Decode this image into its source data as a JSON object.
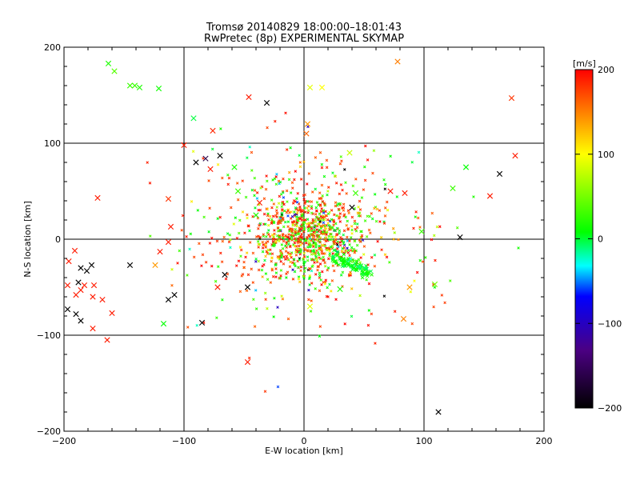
{
  "chart_data": {
    "type": "scatter",
    "title": "Tromsø 20140829 18:00:00–18:01:43",
    "subtitle": "RwPretec (8p) EXPERIMENTAL SKYMAP",
    "xlabel": "E-W location [km]",
    "ylabel": "N-S location [km]",
    "xlim": [
      -200,
      200
    ],
    "ylim": [
      -200,
      200
    ],
    "xticks": [
      "−200",
      "−100",
      "0",
      "100",
      "200"
    ],
    "yticks": [
      "−200",
      "−100",
      "0",
      "100",
      "200"
    ],
    "grid": true,
    "colorbar": {
      "label": "[m/s]",
      "range": [
        -200,
        200
      ],
      "ticks": [
        "200",
        "100",
        "0",
        "−100",
        "−200"
      ],
      "colors": [
        "#000000",
        "#4b0082",
        "#0000ff",
        "#00ffff",
        "#00ff00",
        "#ffff00",
        "#ff0000"
      ]
    },
    "crosses": [
      {
        "x": -163,
        "y": 183,
        "v": 20
      },
      {
        "x": -158,
        "y": 175,
        "v": 40
      },
      {
        "x": -145,
        "y": 160,
        "v": 30
      },
      {
        "x": -137,
        "y": 158,
        "v": 20
      },
      {
        "x": -121,
        "y": 157,
        "v": 15
      },
      {
        "x": -92,
        "y": 126,
        "v": 0
      },
      {
        "x": -76,
        "y": 113,
        "v": 185
      },
      {
        "x": -100,
        "y": 98,
        "v": 190
      },
      {
        "x": -82,
        "y": 84,
        "v": -160
      },
      {
        "x": -70,
        "y": 87,
        "v": -200
      },
      {
        "x": -58,
        "y": 75,
        "v": 20
      },
      {
        "x": -46,
        "y": 148,
        "v": 190
      },
      {
        "x": 5,
        "y": 158,
        "v": 90
      },
      {
        "x": 15,
        "y": 158,
        "v": 100
      },
      {
        "x": 3,
        "y": 120,
        "v": 140
      },
      {
        "x": -31,
        "y": 142,
        "v": -200
      },
      {
        "x": 78,
        "y": 185,
        "v": 150
      },
      {
        "x": 173,
        "y": 147,
        "v": 180
      },
      {
        "x": 176,
        "y": 87,
        "v": 190
      },
      {
        "x": 163,
        "y": 68,
        "v": -200
      },
      {
        "x": 135,
        "y": 75,
        "v": 10
      },
      {
        "x": 124,
        "y": 53,
        "v": 30
      },
      {
        "x": 155,
        "y": 45,
        "v": 190
      },
      {
        "x": 130,
        "y": 2,
        "v": -200
      },
      {
        "x": 98,
        "y": 8,
        "v": 30
      },
      {
        "x": 109,
        "y": -47,
        "v": 50
      },
      {
        "x": 88,
        "y": -50,
        "v": 140
      },
      {
        "x": 83,
        "y": -83,
        "v": 150
      },
      {
        "x": 112,
        "y": -180,
        "v": -200
      },
      {
        "x": -172,
        "y": 43,
        "v": 190
      },
      {
        "x": -113,
        "y": 42,
        "v": 180
      },
      {
        "x": -111,
        "y": 13,
        "v": 190
      },
      {
        "x": -113,
        "y": -3,
        "v": 190
      },
      {
        "x": -120,
        "y": -13,
        "v": 190
      },
      {
        "x": -124,
        "y": -27,
        "v": 140
      },
      {
        "x": -145,
        "y": -27,
        "v": -200
      },
      {
        "x": -177,
        "y": -27,
        "v": -200
      },
      {
        "x": -196,
        "y": -23,
        "v": 190
      },
      {
        "x": -191,
        "y": -12,
        "v": 190
      },
      {
        "x": -186,
        "y": -30,
        "v": -200
      },
      {
        "x": -181,
        "y": -33,
        "v": -200
      },
      {
        "x": -188,
        "y": -45,
        "v": -200
      },
      {
        "x": -197,
        "y": -48,
        "v": 190
      },
      {
        "x": -186,
        "y": -53,
        "v": 190
      },
      {
        "x": -190,
        "y": -58,
        "v": 190
      },
      {
        "x": -183,
        "y": -48,
        "v": 190
      },
      {
        "x": -175,
        "y": -48,
        "v": 190
      },
      {
        "x": -168,
        "y": -63,
        "v": 190
      },
      {
        "x": -160,
        "y": -77,
        "v": 190
      },
      {
        "x": -197,
        "y": -73,
        "v": -200
      },
      {
        "x": -190,
        "y": -78,
        "v": -200
      },
      {
        "x": -186,
        "y": -85,
        "v": -200
      },
      {
        "x": -176,
        "y": -93,
        "v": 190
      },
      {
        "x": -164,
        "y": -105,
        "v": 190
      },
      {
        "x": -176,
        "y": -60,
        "v": 190
      },
      {
        "x": -108,
        "y": -58,
        "v": -200
      },
      {
        "x": -113,
        "y": -63,
        "v": -200
      },
      {
        "x": -117,
        "y": -88,
        "v": 10
      },
      {
        "x": -85,
        "y": -87,
        "v": -200
      },
      {
        "x": -72,
        "y": -50,
        "v": 190
      },
      {
        "x": -66,
        "y": -37,
        "v": -200
      },
      {
        "x": -47,
        "y": -50,
        "v": -200
      },
      {
        "x": -47,
        "y": -128,
        "v": 190
      },
      {
        "x": 5,
        "y": -70,
        "v": 90
      },
      {
        "x": 30,
        "y": -52,
        "v": 20
      },
      {
        "x": 40,
        "y": 33,
        "v": -200
      },
      {
        "x": 72,
        "y": 50,
        "v": 190
      },
      {
        "x": 84,
        "y": 48,
        "v": 190
      },
      {
        "x": 43,
        "y": 48,
        "v": 30
      },
      {
        "x": -40,
        "y": 25,
        "v": 20
      },
      {
        "x": -37,
        "y": 38,
        "v": 190
      },
      {
        "x": -55,
        "y": 50,
        "v": 30
      },
      {
        "x": -90,
        "y": 80,
        "v": -200
      },
      {
        "x": -78,
        "y": 73,
        "v": 190
      },
      {
        "x": 38,
        "y": 90,
        "v": 80
      },
      {
        "x": 2,
        "y": 110,
        "v": 160
      },
      {
        "x": -141,
        "y": 160,
        "v": 30
      }
    ],
    "dense_clusters": [
      {
        "cx": 5,
        "cy": 5,
        "sx": 22,
        "sy": 22,
        "n": 650
      },
      {
        "cx": -8,
        "cy": 10,
        "sx": 40,
        "sy": 38,
        "n": 320
      },
      {
        "cx": 15,
        "cy": -5,
        "sx": 60,
        "sy": 55,
        "n": 170
      }
    ],
    "tail": {
      "x0": 25,
      "y0": -18,
      "x1": 55,
      "y1": -36,
      "n": 90,
      "v": 10
    }
  }
}
